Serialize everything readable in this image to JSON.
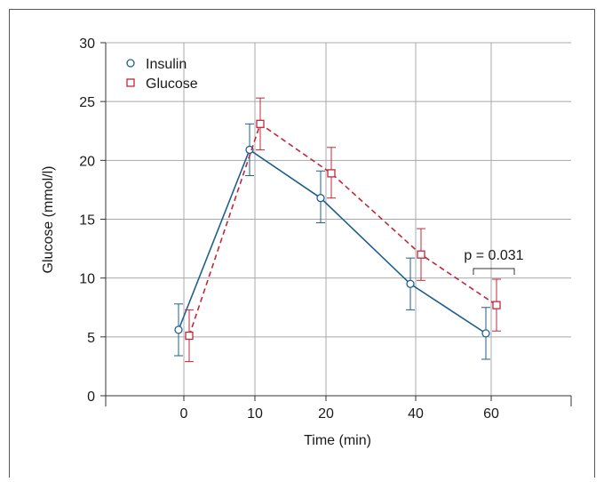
{
  "chart_data": {
    "type": "line",
    "xlabel": "Time (min)",
    "ylabel": "Glucose (mmol/l)",
    "categories": [
      "0",
      "10",
      "20",
      "40",
      "60"
    ],
    "ylim": [
      0,
      30
    ],
    "yticks": [
      0,
      5,
      10,
      15,
      20,
      25,
      30
    ],
    "grid": true,
    "legend_position": "top-left",
    "series": [
      {
        "name": "Insulin",
        "color": "#1f5f8b",
        "marker": "circle",
        "line_style": "solid",
        "values": [
          5.6,
          20.9,
          16.8,
          9.5,
          5.3
        ],
        "err_low": [
          3.4,
          18.7,
          14.7,
          7.3,
          3.1
        ],
        "err_high": [
          7.8,
          23.1,
          19.1,
          11.7,
          7.5
        ]
      },
      {
        "name": "Glucose",
        "color": "#c0283a",
        "marker": "square",
        "line_style": "dashed",
        "values": [
          5.1,
          23.1,
          18.9,
          12.0,
          7.7
        ],
        "err_low": [
          2.9,
          20.9,
          16.8,
          9.8,
          5.5
        ],
        "err_high": [
          7.3,
          25.3,
          21.1,
          14.2,
          9.9
        ]
      }
    ],
    "annotation": {
      "text": "p = 0.031",
      "category_index": 4
    }
  }
}
